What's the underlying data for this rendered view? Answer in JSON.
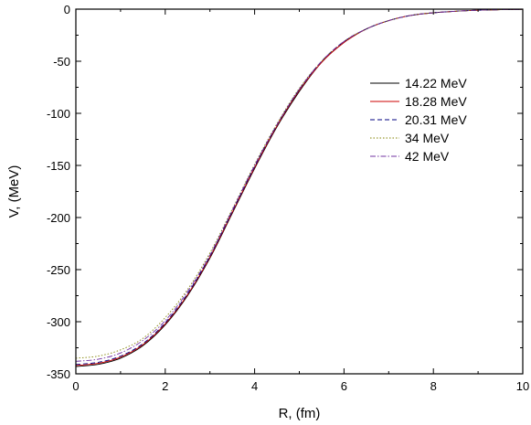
{
  "chart_data": {
    "type": "line",
    "title": "",
    "xlabel": "R, (fm)",
    "ylabel": "V, (MeV)",
    "xlim": [
      0,
      10
    ],
    "ylim": [
      -350,
      0
    ],
    "x_ticks": [
      0,
      2,
      4,
      6,
      8,
      10
    ],
    "y_ticks": [
      -350,
      -300,
      -250,
      -200,
      -150,
      -100,
      -50,
      0
    ],
    "grid": false,
    "legend_position": "right",
    "x": [
      0,
      0.5,
      1,
      1.5,
      2,
      2.5,
      3,
      3.5,
      4,
      4.5,
      5,
      5.5,
      6,
      6.5,
      7,
      7.5,
      8,
      8.5,
      9,
      9.5,
      10
    ],
    "series": [
      {
        "name": "14.22 MeV",
        "color": "#000000",
        "dash": "solid",
        "values": [
          -343,
          -341,
          -335,
          -323,
          -303,
          -275,
          -239,
          -196,
          -153,
          -113,
          -79,
          -51,
          -32,
          -19,
          -11,
          -6,
          -3.5,
          -2,
          -1,
          -0.5,
          -0.2
        ]
      },
      {
        "name": "18.28 MeV",
        "color": "#cc0000",
        "dash": "solid",
        "values": [
          -342,
          -340,
          -334,
          -322,
          -302,
          -274,
          -238,
          -195,
          -152,
          -112,
          -78,
          -51,
          -32,
          -19,
          -11,
          -6,
          -3.5,
          -2,
          -1,
          -0.5,
          -0.2
        ]
      },
      {
        "name": "20.31 MeV",
        "color": "#000080",
        "dash": "dashed",
        "values": [
          -341,
          -339,
          -333,
          -321,
          -301,
          -273,
          -237,
          -194,
          -151,
          -111,
          -77,
          -50,
          -31,
          -19,
          -11,
          -6,
          -3.5,
          -2,
          -1,
          -0.5,
          -0.2
        ]
      },
      {
        "name": "34 MeV",
        "color": "#808000",
        "dash": "dotted",
        "values": [
          -335,
          -333,
          -327,
          -316,
          -296,
          -269,
          -234,
          -192,
          -149,
          -110,
          -76,
          -50,
          -31,
          -19,
          -11,
          -6,
          -3.5,
          -2,
          -1,
          -0.5,
          -0.2
        ]
      },
      {
        "name": "42 MeV",
        "color": "#7030a0",
        "dash": "dashdot",
        "values": [
          -338,
          -336,
          -330,
          -318,
          -299,
          -271,
          -236,
          -193,
          -150,
          -111,
          -77,
          -50,
          -31,
          -19,
          -11,
          -6,
          -3.5,
          -2,
          -1,
          -0.5,
          -0.2
        ]
      }
    ]
  }
}
